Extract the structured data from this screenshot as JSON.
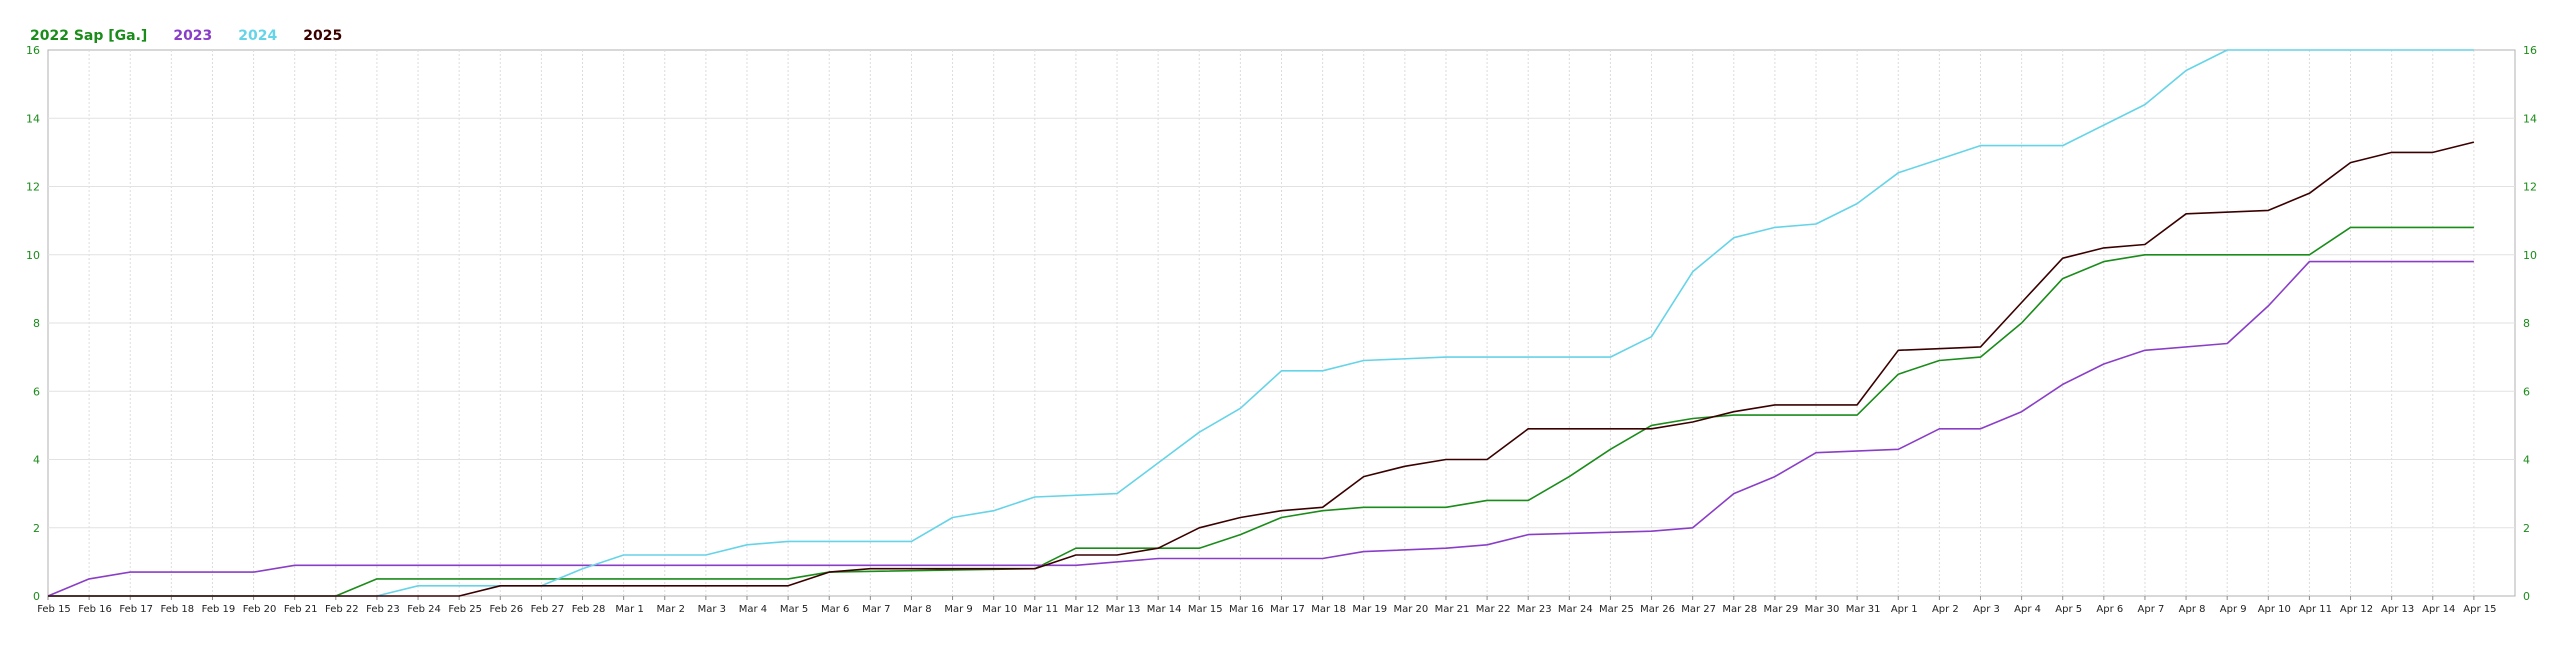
{
  "chart_data": {
    "type": "line",
    "title": "",
    "xlabel": "",
    "ylabel": "",
    "ylim": [
      0,
      16
    ],
    "y_ticks": [
      0,
      2,
      4,
      6,
      8,
      10,
      12,
      14,
      16
    ],
    "grid": true,
    "legend_position": "top-left",
    "x_tick_labels": [
      "Feb 15",
      "Feb 16",
      "Feb 17",
      "Feb 18",
      "Feb 19",
      "Feb 20",
      "Feb 21",
      "Feb 22",
      "Feb 23",
      "Feb 24",
      "Feb 25",
      "Feb 26",
      "Feb 27",
      "Feb 28",
      "Mar 1",
      "Mar 2",
      "Mar 3",
      "Mar 4",
      "Mar 5",
      "Mar 6",
      "Mar 7",
      "Mar 8",
      "Mar 9",
      "Mar 10",
      "Mar 11",
      "Mar 12",
      "Mar 13",
      "Mar 14",
      "Mar 15",
      "Mar 16",
      "Mar 17",
      "Mar 18",
      "Mar 19",
      "Mar 20",
      "Mar 21",
      "Mar 22",
      "Mar 23",
      "Mar 24",
      "Mar 25",
      "Mar 26",
      "Mar 27",
      "Mar 28",
      "Mar 29",
      "Mar 30",
      "Mar 31",
      "Apr 1",
      "Apr 2",
      "Apr 3",
      "Apr 4",
      "Apr 5",
      "Apr 6",
      "Apr 7",
      "Apr 8",
      "Apr 9",
      "Apr 10",
      "Apr 11",
      "Apr 12",
      "Apr 13",
      "Apr 14",
      "Apr 15"
    ],
    "series": [
      {
        "name": "2022 Sap [Ga.]",
        "color": "#1a8c1a",
        "points": [
          [
            "Feb 15",
            0
          ],
          [
            "Feb 22",
            0
          ],
          [
            "Feb 23",
            0.5
          ],
          [
            "Mar 5",
            0.5
          ],
          [
            "Mar 6",
            0.7
          ],
          [
            "Mar 11",
            0.8
          ],
          [
            "Mar 12",
            1.4
          ],
          [
            "Mar 14",
            1.4
          ],
          [
            "Mar 15",
            1.4
          ],
          [
            "Mar 16",
            1.8
          ],
          [
            "Mar 17",
            2.3
          ],
          [
            "Mar 18",
            2.5
          ],
          [
            "Mar 19",
            2.6
          ],
          [
            "Mar 21",
            2.6
          ],
          [
            "Mar 22",
            2.8
          ],
          [
            "Mar 23",
            2.8
          ],
          [
            "Mar 24",
            3.5
          ],
          [
            "Mar 25",
            4.3
          ],
          [
            "Mar 26",
            5.0
          ],
          [
            "Mar 27",
            5.2
          ],
          [
            "Mar 28",
            5.3
          ],
          [
            "Mar 31",
            5.3
          ],
          [
            "Apr 1",
            6.5
          ],
          [
            "Apr 2",
            6.9
          ],
          [
            "Apr 3",
            7.0
          ],
          [
            "Apr 4",
            8.0
          ],
          [
            "Apr 5",
            9.3
          ],
          [
            "Apr 6",
            9.8
          ],
          [
            "Apr 7",
            10.0
          ],
          [
            "Apr 11",
            10.0
          ],
          [
            "Apr 12",
            10.8
          ],
          [
            "Apr 15",
            10.8
          ]
        ]
      },
      {
        "name": "2023",
        "color": "#8a3ec8",
        "points": [
          [
            "Feb 15",
            0
          ],
          [
            "Feb 16",
            0.5
          ],
          [
            "Feb 17",
            0.7
          ],
          [
            "Feb 20",
            0.7
          ],
          [
            "Feb 21",
            0.9
          ],
          [
            "Mar 11",
            0.9
          ],
          [
            "Mar 12",
            0.9
          ],
          [
            "Mar 14",
            1.1
          ],
          [
            "Mar 18",
            1.1
          ],
          [
            "Mar 19",
            1.3
          ],
          [
            "Mar 21",
            1.4
          ],
          [
            "Mar 22",
            1.5
          ],
          [
            "Mar 23",
            1.8
          ],
          [
            "Mar 26",
            1.9
          ],
          [
            "Mar 27",
            2.0
          ],
          [
            "Mar 28",
            3.0
          ],
          [
            "Mar 29",
            3.5
          ],
          [
            "Mar 30",
            4.2
          ],
          [
            "Apr 1",
            4.3
          ],
          [
            "Apr 2",
            4.9
          ],
          [
            "Apr 3",
            4.9
          ],
          [
            "Apr 4",
            5.4
          ],
          [
            "Apr 5",
            6.2
          ],
          [
            "Apr 6",
            6.8
          ],
          [
            "Apr 7",
            7.2
          ],
          [
            "Apr 9",
            7.4
          ],
          [
            "Apr 10",
            8.5
          ],
          [
            "Apr 11",
            9.8
          ],
          [
            "Apr 15",
            9.8
          ]
        ]
      },
      {
        "name": "2024",
        "color": "#66d4e8",
        "points": [
          [
            "Feb 15",
            0
          ],
          [
            "Feb 23",
            0
          ],
          [
            "Feb 24",
            0.3
          ],
          [
            "Feb 27",
            0.3
          ],
          [
            "Feb 28",
            0.8
          ],
          [
            "Mar 1",
            1.2
          ],
          [
            "Mar 3",
            1.2
          ],
          [
            "Mar 4",
            1.5
          ],
          [
            "Mar 5",
            1.6
          ],
          [
            "Mar 8",
            1.6
          ],
          [
            "Mar 9",
            2.3
          ],
          [
            "Mar 10",
            2.5
          ],
          [
            "Mar 11",
            2.9
          ],
          [
            "Mar 13",
            3.0
          ],
          [
            "Mar 14",
            3.9
          ],
          [
            "Mar 15",
            4.8
          ],
          [
            "Mar 16",
            5.5
          ],
          [
            "Mar 17",
            6.6
          ],
          [
            "Mar 18",
            6.6
          ],
          [
            "Mar 19",
            6.9
          ],
          [
            "Mar 21",
            7.0
          ],
          [
            "Mar 25",
            7.0
          ],
          [
            "Mar 26",
            7.6
          ],
          [
            "Mar 27",
            9.5
          ],
          [
            "Mar 28",
            10.5
          ],
          [
            "Mar 29",
            10.8
          ],
          [
            "Mar 30",
            10.9
          ],
          [
            "Mar 31",
            11.5
          ],
          [
            "Apr 1",
            12.4
          ],
          [
            "Apr 2",
            12.8
          ],
          [
            "Apr 3",
            13.2
          ],
          [
            "Apr 5",
            13.2
          ],
          [
            "Apr 6",
            13.8
          ],
          [
            "Apr 7",
            14.4
          ],
          [
            "Apr 8",
            15.4
          ],
          [
            "Apr 9",
            16.0
          ],
          [
            "Apr 15",
            16.0
          ]
        ]
      },
      {
        "name": "2025",
        "color": "#3a0000",
        "points": [
          [
            "Feb 15",
            0
          ],
          [
            "Feb 25",
            0
          ],
          [
            "Feb 26",
            0.3
          ],
          [
            "Mar 5",
            0.3
          ],
          [
            "Mar 6",
            0.7
          ],
          [
            "Mar 7",
            0.8
          ],
          [
            "Mar 11",
            0.8
          ],
          [
            "Mar 12",
            1.2
          ],
          [
            "Mar 13",
            1.2
          ],
          [
            "Mar 14",
            1.4
          ],
          [
            "Mar 15",
            2.0
          ],
          [
            "Mar 16",
            2.3
          ],
          [
            "Mar 17",
            2.5
          ],
          [
            "Mar 18",
            2.6
          ],
          [
            "Mar 19",
            3.5
          ],
          [
            "Mar 20",
            3.8
          ],
          [
            "Mar 21",
            4.0
          ],
          [
            "Mar 22",
            4.0
          ],
          [
            "Mar 23",
            4.9
          ],
          [
            "Mar 26",
            4.9
          ],
          [
            "Mar 27",
            5.1
          ],
          [
            "Mar 28",
            5.4
          ],
          [
            "Mar 29",
            5.6
          ],
          [
            "Mar 31",
            5.6
          ],
          [
            "Apr 1",
            7.2
          ],
          [
            "Apr 3",
            7.3
          ],
          [
            "Apr 4",
            8.6
          ],
          [
            "Apr 5",
            9.9
          ],
          [
            "Apr 6",
            10.2
          ],
          [
            "Apr 7",
            10.3
          ],
          [
            "Apr 8",
            11.2
          ],
          [
            "Apr 10",
            11.3
          ],
          [
            "Apr 11",
            11.8
          ],
          [
            "Apr 12",
            12.7
          ],
          [
            "Apr 13",
            13.0
          ],
          [
            "Apr 14",
            13.0
          ],
          [
            "Apr 15",
            13.3
          ]
        ]
      }
    ]
  }
}
